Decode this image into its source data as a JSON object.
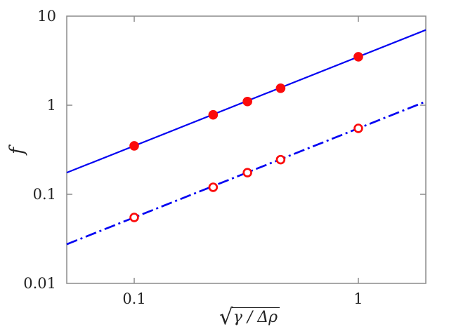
{
  "figure": {
    "background": "#ffffff",
    "frame_color": "#8b8b8b",
    "text_color": "#242424"
  },
  "chart_data": {
    "type": "scatter",
    "x_scale": "log",
    "y_scale": "log",
    "xlim": [
      0.05,
      2
    ],
    "ylim": [
      0.01,
      10
    ],
    "grid": false,
    "legend": null,
    "title": "",
    "ylabel": "f",
    "xlabel": {
      "radical": "√",
      "radicand": "γ / Δρ"
    },
    "xaxis": {
      "tick_values": [
        0.1,
        1
      ],
      "ticks": [
        {
          "value": 0.1,
          "label": "0.1"
        },
        {
          "value": 1,
          "label": "1"
        }
      ]
    },
    "yaxis": {
      "tick_mark_values": [
        1,
        0.1
      ],
      "ticks": [
        {
          "value": 10,
          "label": "10"
        },
        {
          "value": 1,
          "label": "1"
        },
        {
          "value": 0.1,
          "label": "0.1"
        },
        {
          "value": 0.01,
          "label": "0.01"
        }
      ]
    },
    "series": [
      {
        "name": "filled-circles-solid-line",
        "marker": "filled-circle",
        "marker_color": "#fb0b0b",
        "line_style": "solid",
        "line_color": "#0404f2",
        "x": [
          0.1,
          0.225,
          0.32,
          0.45,
          1.0
        ],
        "y": [
          0.35,
          0.78,
          1.1,
          1.55,
          3.5
        ],
        "fit_line": {
          "x": [
            0.05,
            2
          ],
          "y": [
            0.175,
            7.0
          ]
        }
      },
      {
        "name": "open-circles-dashdot-line",
        "marker": "open-circle",
        "marker_color": "#fb0b0b",
        "line_style": "dash-dot",
        "line_color": "#0404f2",
        "x": [
          0.1,
          0.225,
          0.32,
          0.45,
          1.0
        ],
        "y": [
          0.055,
          0.12,
          0.175,
          0.245,
          0.55
        ],
        "fit_line": {
          "x": [
            0.05,
            2
          ],
          "y": [
            0.0275,
            1.1
          ]
        }
      }
    ]
  }
}
